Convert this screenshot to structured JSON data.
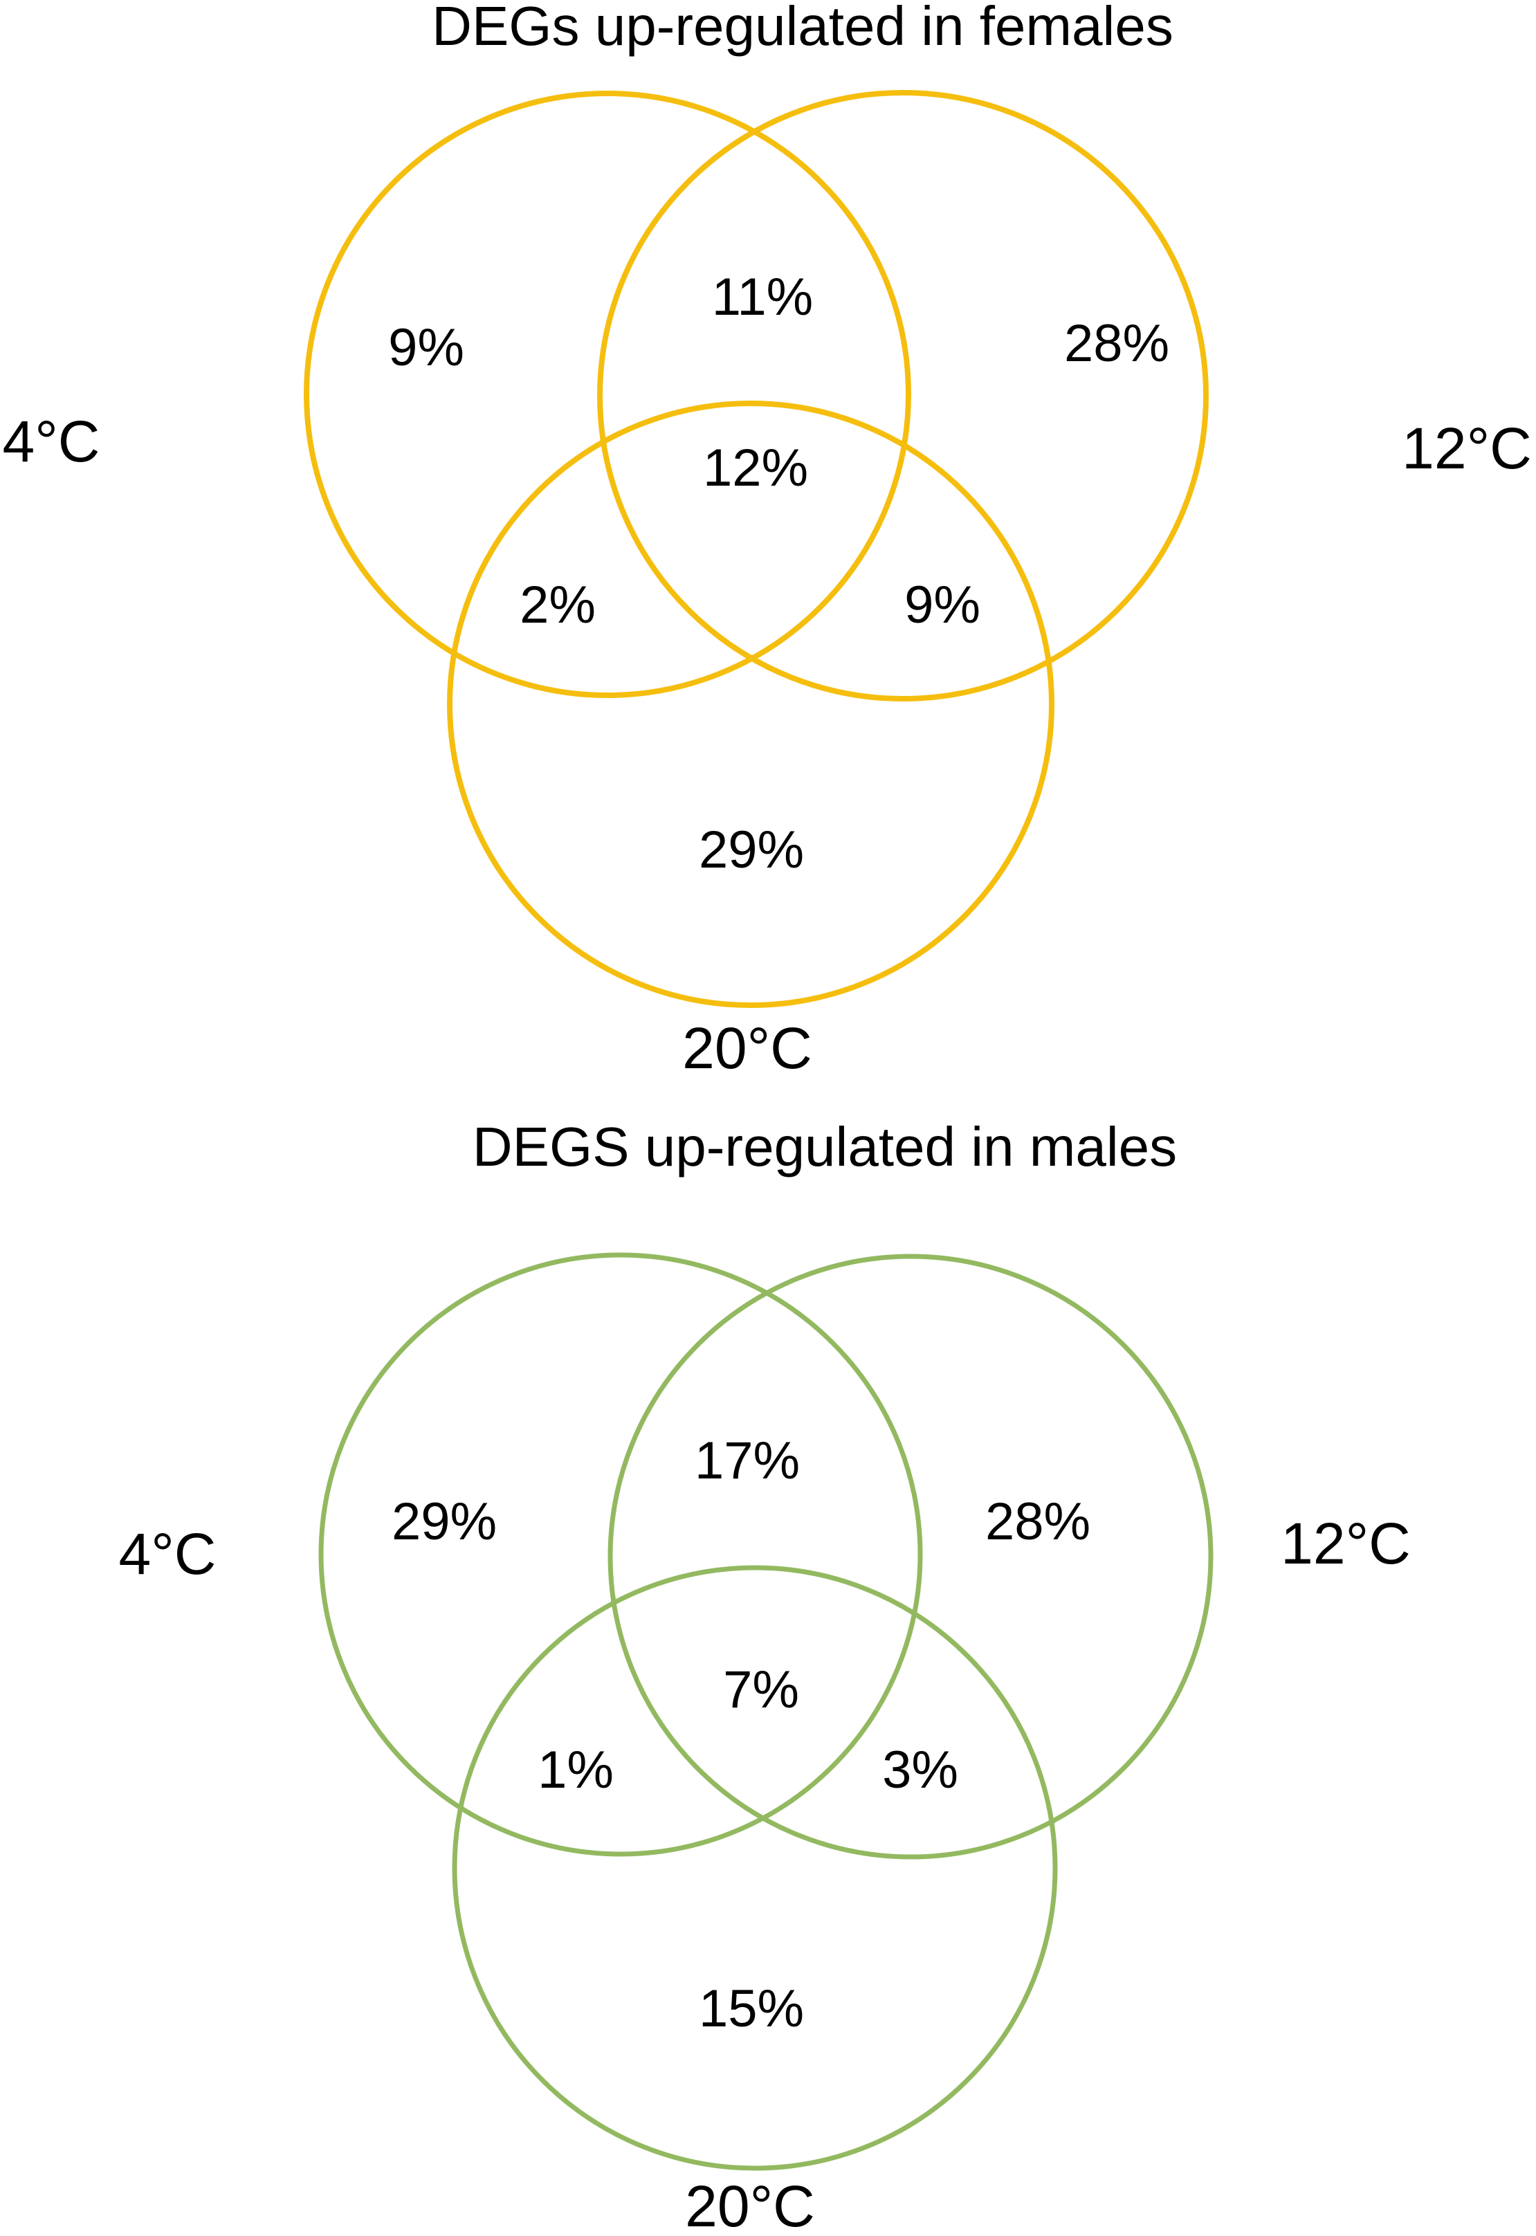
{
  "colors": {
    "female_circles": "#F5BE0F",
    "male_circles": "#93B960",
    "text": "#000000"
  },
  "diagrams": [
    {
      "title": "DEGs up-regulated in females",
      "set_labels": {
        "a": "4°C",
        "b": "12°C",
        "c": "20°C"
      },
      "regions": {
        "a_only": "9%",
        "b_only": "28%",
        "c_only": "29%",
        "ab": "11%",
        "ac": "2%",
        "bc": "9%",
        "abc": "12%"
      }
    },
    {
      "title": "DEGS up-regulated in males",
      "set_labels": {
        "a": "4°C",
        "b": "12°C",
        "c": "20°C"
      },
      "regions": {
        "a_only": "29%",
        "b_only": "28%",
        "c_only": "15%",
        "ab": "17%",
        "ac": "1%",
        "bc": "3%",
        "abc": "7%"
      }
    }
  ]
}
